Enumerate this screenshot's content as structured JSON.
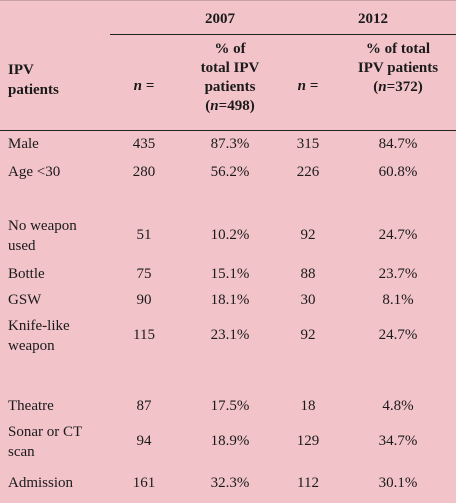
{
  "table": {
    "years": [
      "2007",
      "2012"
    ],
    "header": {
      "label_line1": "IPV",
      "label_line2": "patients",
      "n_label": "n =",
      "pct_2007": [
        "% of",
        "total IPV",
        "patients",
        "n",
        "=498"
      ],
      "pct_2012": [
        "% of total",
        "IPV patients",
        "n",
        "=372"
      ]
    },
    "rows": [
      {
        "label": [
          "Male"
        ],
        "n2007": "435",
        "pct2007": "87.3%",
        "n2012": "315",
        "pct2012": "84.7%"
      },
      {
        "label": [
          "Age <30"
        ],
        "n2007": "280",
        "pct2007": "56.2%",
        "n2012": "226",
        "pct2012": "60.8%"
      },
      {
        "label": [
          "No weapon",
          "used"
        ],
        "n2007": "51",
        "pct2007": "10.2%",
        "n2012": "92",
        "pct2012": "24.7%"
      },
      {
        "label": [
          "Bottle"
        ],
        "n2007": "75",
        "pct2007": "15.1%",
        "n2012": "88",
        "pct2012": "23.7%"
      },
      {
        "label": [
          "GSW"
        ],
        "n2007": "90",
        "pct2007": "18.1%",
        "n2012": "30",
        "pct2012": "8.1%"
      },
      {
        "label": [
          "Knife-like",
          "weapon"
        ],
        "n2007": "115",
        "pct2007": "23.1%",
        "n2012": "92",
        "pct2012": "24.7%"
      },
      {
        "label": [
          "Theatre"
        ],
        "n2007": "87",
        "pct2007": "17.5%",
        "n2012": "18",
        "pct2012": "4.8%"
      },
      {
        "label": [
          "Sonar or CT",
          "scan"
        ],
        "n2007": "94",
        "pct2007": "18.9%",
        "n2012": "129",
        "pct2012": "34.7%"
      },
      {
        "label": [
          "Admission"
        ],
        "n2007": "161",
        "pct2007": "32.3%",
        "n2012": "112",
        "pct2012": "30.1%"
      }
    ]
  }
}
